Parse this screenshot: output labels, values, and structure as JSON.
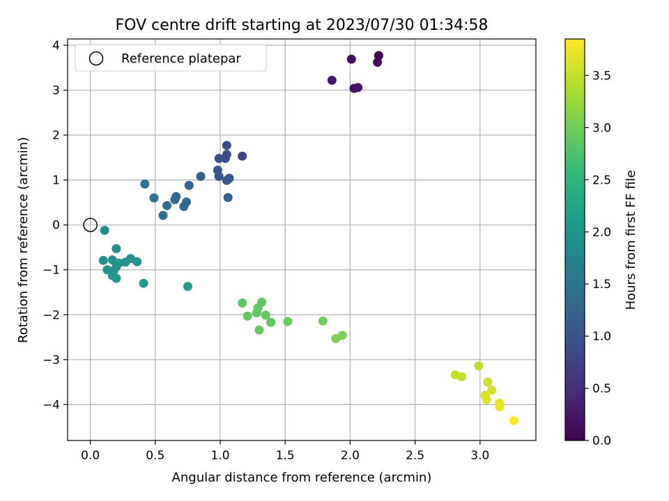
{
  "chart_data": {
    "type": "scatter",
    "title": "FOV centre drift starting at 2023/07/30 01:34:58",
    "xlabel": "Angular distance from reference (arcmin)",
    "ylabel": "Rotation from reference (arcmin)",
    "xlim": [
      -0.175,
      3.43
    ],
    "ylim": [
      -4.8,
      4.14
    ],
    "x_ticks": [
      0.0,
      0.5,
      1.0,
      1.5,
      2.0,
      2.5,
      3.0
    ],
    "x_tick_labels": [
      "0.0",
      "0.5",
      "1.0",
      "1.5",
      "2.0",
      "2.5",
      "3.0"
    ],
    "y_ticks": [
      -4,
      -3,
      -2,
      -1,
      0,
      1,
      2,
      3,
      4
    ],
    "y_tick_labels": [
      "−4",
      "−3",
      "−2",
      "−1",
      "0",
      "1",
      "2",
      "3",
      "4"
    ],
    "grid": true,
    "legend": {
      "placement": "top-left",
      "entries": [
        "Reference platepar"
      ]
    },
    "reference_point": {
      "label": "Reference platepar",
      "x": 0.0,
      "y": 0.0,
      "marker": "open-circle",
      "color": "#000000"
    },
    "colorbar": {
      "label": "Hours from first FF file",
      "min": 0.0,
      "max": 3.85,
      "ticks": [
        0.0,
        0.5,
        1.0,
        1.5,
        2.0,
        2.5,
        3.0,
        3.5
      ],
      "tick_labels": [
        "0.0",
        "0.5",
        "1.0",
        "1.5",
        "2.0",
        "2.5",
        "3.0",
        "3.5"
      ],
      "colormap": "viridis",
      "colormap_stops": [
        "#440154",
        "#482878",
        "#3e4989",
        "#31688e",
        "#26828e",
        "#1f9e89",
        "#35b779",
        "#6ece58",
        "#b5de2b",
        "#fde725"
      ]
    },
    "points": [
      {
        "x": 2.22,
        "y": 3.77,
        "hours": 0.0
      },
      {
        "x": 2.21,
        "y": 3.62,
        "hours": 0.05
      },
      {
        "x": 2.01,
        "y": 3.69,
        "hours": 0.1
      },
      {
        "x": 2.03,
        "y": 3.04,
        "hours": 0.15
      },
      {
        "x": 2.06,
        "y": 3.06,
        "hours": 0.2
      },
      {
        "x": 1.86,
        "y": 3.22,
        "hours": 0.25
      },
      {
        "x": 1.17,
        "y": 1.53,
        "hours": 0.8
      },
      {
        "x": 1.05,
        "y": 1.77,
        "hours": 0.85
      },
      {
        "x": 1.05,
        "y": 1.57,
        "hours": 0.88
      },
      {
        "x": 1.04,
        "y": 1.48,
        "hours": 0.9
      },
      {
        "x": 0.99,
        "y": 1.48,
        "hours": 0.95
      },
      {
        "x": 0.98,
        "y": 1.22,
        "hours": 1.0
      },
      {
        "x": 0.99,
        "y": 1.08,
        "hours": 1.02
      },
      {
        "x": 1.07,
        "y": 1.04,
        "hours": 1.05
      },
      {
        "x": 1.05,
        "y": 0.99,
        "hours": 1.08
      },
      {
        "x": 1.06,
        "y": 0.61,
        "hours": 1.15
      },
      {
        "x": 0.85,
        "y": 1.08,
        "hours": 1.2
      },
      {
        "x": 0.76,
        "y": 0.88,
        "hours": 1.25
      },
      {
        "x": 0.74,
        "y": 0.51,
        "hours": 1.28
      },
      {
        "x": 0.72,
        "y": 0.41,
        "hours": 1.3
      },
      {
        "x": 0.66,
        "y": 0.63,
        "hours": 1.33
      },
      {
        "x": 0.65,
        "y": 0.56,
        "hours": 1.35
      },
      {
        "x": 0.59,
        "y": 0.43,
        "hours": 1.38
      },
      {
        "x": 0.56,
        "y": 0.21,
        "hours": 1.42
      },
      {
        "x": 0.49,
        "y": 0.6,
        "hours": 1.45
      },
      {
        "x": 0.42,
        "y": 0.91,
        "hours": 1.5
      },
      {
        "x": 0.11,
        "y": -0.12,
        "hours": 1.85
      },
      {
        "x": 0.2,
        "y": -0.53,
        "hours": 1.88
      },
      {
        "x": 0.1,
        "y": -0.79,
        "hours": 1.9
      },
      {
        "x": 0.17,
        "y": -0.78,
        "hours": 1.92
      },
      {
        "x": 0.31,
        "y": -0.75,
        "hours": 1.93
      },
      {
        "x": 0.36,
        "y": -0.82,
        "hours": 1.94
      },
      {
        "x": 0.27,
        "y": -0.83,
        "hours": 1.95
      },
      {
        "x": 0.22,
        "y": -0.85,
        "hours": 1.96
      },
      {
        "x": 0.2,
        "y": -0.93,
        "hours": 1.97
      },
      {
        "x": 0.13,
        "y": -1.0,
        "hours": 1.98
      },
      {
        "x": 0.18,
        "y": -1.02,
        "hours": 1.99
      },
      {
        "x": 0.17,
        "y": -1.13,
        "hours": 2.0
      },
      {
        "x": 0.2,
        "y": -1.19,
        "hours": 2.01
      },
      {
        "x": 0.41,
        "y": -1.3,
        "hours": 2.05
      },
      {
        "x": 0.75,
        "y": -1.37,
        "hours": 2.15
      },
      {
        "x": 1.17,
        "y": -1.74,
        "hours": 2.85
      },
      {
        "x": 1.32,
        "y": -1.72,
        "hours": 2.86
      },
      {
        "x": 1.29,
        "y": -1.85,
        "hours": 2.87
      },
      {
        "x": 1.28,
        "y": -1.96,
        "hours": 2.88
      },
      {
        "x": 1.35,
        "y": -2.01,
        "hours": 2.89
      },
      {
        "x": 1.21,
        "y": -2.03,
        "hours": 2.9
      },
      {
        "x": 1.39,
        "y": -2.17,
        "hours": 2.91
      },
      {
        "x": 1.3,
        "y": -2.34,
        "hours": 2.92
      },
      {
        "x": 1.52,
        "y": -2.15,
        "hours": 2.94
      },
      {
        "x": 1.79,
        "y": -2.14,
        "hours": 3.0
      },
      {
        "x": 1.94,
        "y": -2.46,
        "hours": 3.05
      },
      {
        "x": 1.89,
        "y": -2.53,
        "hours": 3.08
      },
      {
        "x": 2.99,
        "y": -3.14,
        "hours": 3.45
      },
      {
        "x": 2.81,
        "y": -3.34,
        "hours": 3.48
      },
      {
        "x": 2.86,
        "y": -3.38,
        "hours": 3.5
      },
      {
        "x": 3.06,
        "y": -3.5,
        "hours": 3.55
      },
      {
        "x": 3.09,
        "y": -3.68,
        "hours": 3.6
      },
      {
        "x": 3.04,
        "y": -3.79,
        "hours": 3.62
      },
      {
        "x": 3.05,
        "y": -3.89,
        "hours": 3.65
      },
      {
        "x": 3.15,
        "y": -3.97,
        "hours": 3.72
      },
      {
        "x": 3.15,
        "y": -4.05,
        "hours": 3.75
      },
      {
        "x": 3.26,
        "y": -4.36,
        "hours": 3.85
      }
    ]
  }
}
